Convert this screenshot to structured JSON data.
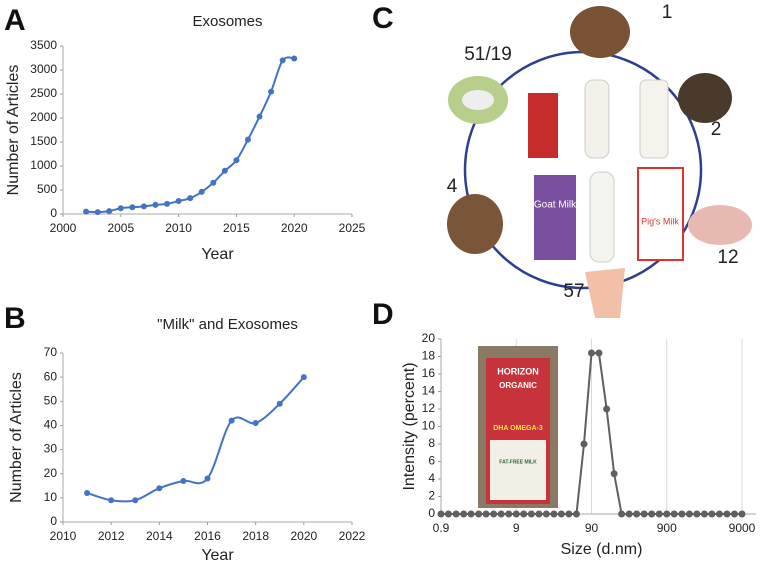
{
  "panel_labels": [
    "A",
    "B",
    "C",
    "D"
  ],
  "chart_data": [
    {
      "type": "line",
      "title": "Exosomes",
      "x_label": "Year",
      "y_label": "Number of Articles",
      "x": [
        2002,
        2003,
        2004,
        2005,
        2006,
        2007,
        2008,
        2009,
        2010,
        2011,
        2012,
        2013,
        2014,
        2015,
        2016,
        2017,
        2018,
        2019,
        2020
      ],
      "values": [
        50,
        40,
        60,
        120,
        140,
        160,
        190,
        210,
        270,
        330,
        460,
        650,
        900,
        1120,
        1550,
        2030,
        2550,
        3200,
        3240
      ],
      "color": "#4472c4",
      "smooth": true,
      "xlim": [
        2000,
        2025
      ],
      "xticks": [
        2000,
        2005,
        2010,
        2015,
        2020,
        2025
      ],
      "ylim": [
        0,
        3500
      ],
      "yticks": [
        0,
        500,
        1000,
        1500,
        2000,
        2500,
        3000,
        3500
      ]
    },
    {
      "type": "line",
      "title": "\"Milk\" and Exosomes",
      "x_label": "Year",
      "y_label": "Number of Articles",
      "x": [
        2011,
        2012,
        2013,
        2014,
        2015,
        2016,
        2017,
        2018,
        2019,
        2020
      ],
      "values": [
        12,
        9,
        9,
        14,
        17,
        18,
        42,
        41,
        49,
        60
      ],
      "color": "#4472c4",
      "smooth": true,
      "xlim": [
        2010,
        2022
      ],
      "xticks": [
        2010,
        2012,
        2014,
        2016,
        2018,
        2020,
        2022
      ],
      "ylim": [
        0,
        70
      ],
      "yticks": [
        0,
        10,
        20,
        30,
        40,
        50,
        60,
        70
      ]
    },
    {
      "type": "line",
      "x_label": "Size (d.nm)",
      "y_label": "Intensity (percent)",
      "x": [
        0.9,
        1.13,
        1.43,
        1.8,
        2.26,
        2.85,
        3.58,
        4.51,
        5.68,
        7.15,
        9,
        11.3,
        14.3,
        18,
        22.6,
        28.5,
        35.8,
        45.1,
        56.8,
        71.5,
        90,
        113,
        143,
        180,
        226,
        285,
        358,
        451,
        568,
        715,
        900,
        1130,
        1430,
        1800,
        2260,
        2850,
        3580,
        4510,
        5680,
        7150,
        9000
      ],
      "values": [
        0,
        0,
        0,
        0,
        0,
        0,
        0,
        0,
        0,
        0,
        0,
        0,
        0,
        0,
        0,
        0,
        0,
        0,
        0,
        8,
        18.4,
        18.4,
        12,
        4.6,
        0,
        0,
        0,
        0,
        0,
        0,
        0,
        0,
        0,
        0,
        0,
        0,
        0,
        0,
        0,
        0,
        0
      ],
      "color": "#606060",
      "smooth": false,
      "xscale": "log",
      "grid": true,
      "xlim": [
        0.9,
        9000
      ],
      "xticks": [
        0.9,
        9,
        90,
        900,
        9000
      ],
      "ylim": [
        0,
        20
      ],
      "yticks": [
        0,
        2,
        4,
        6,
        8,
        10,
        12,
        14,
        16,
        18,
        20
      ]
    }
  ],
  "diagram": {
    "labels": [
      "1",
      "2",
      "12",
      "57",
      "4",
      "51/19"
    ],
    "cartons": [
      "Goat Milk",
      "Pig's Milk"
    ]
  },
  "inset": {
    "texts": [
      "HORIZON",
      "ORGANIC",
      "DHA OMEGA-3",
      "FAT-FREE MILK"
    ]
  }
}
